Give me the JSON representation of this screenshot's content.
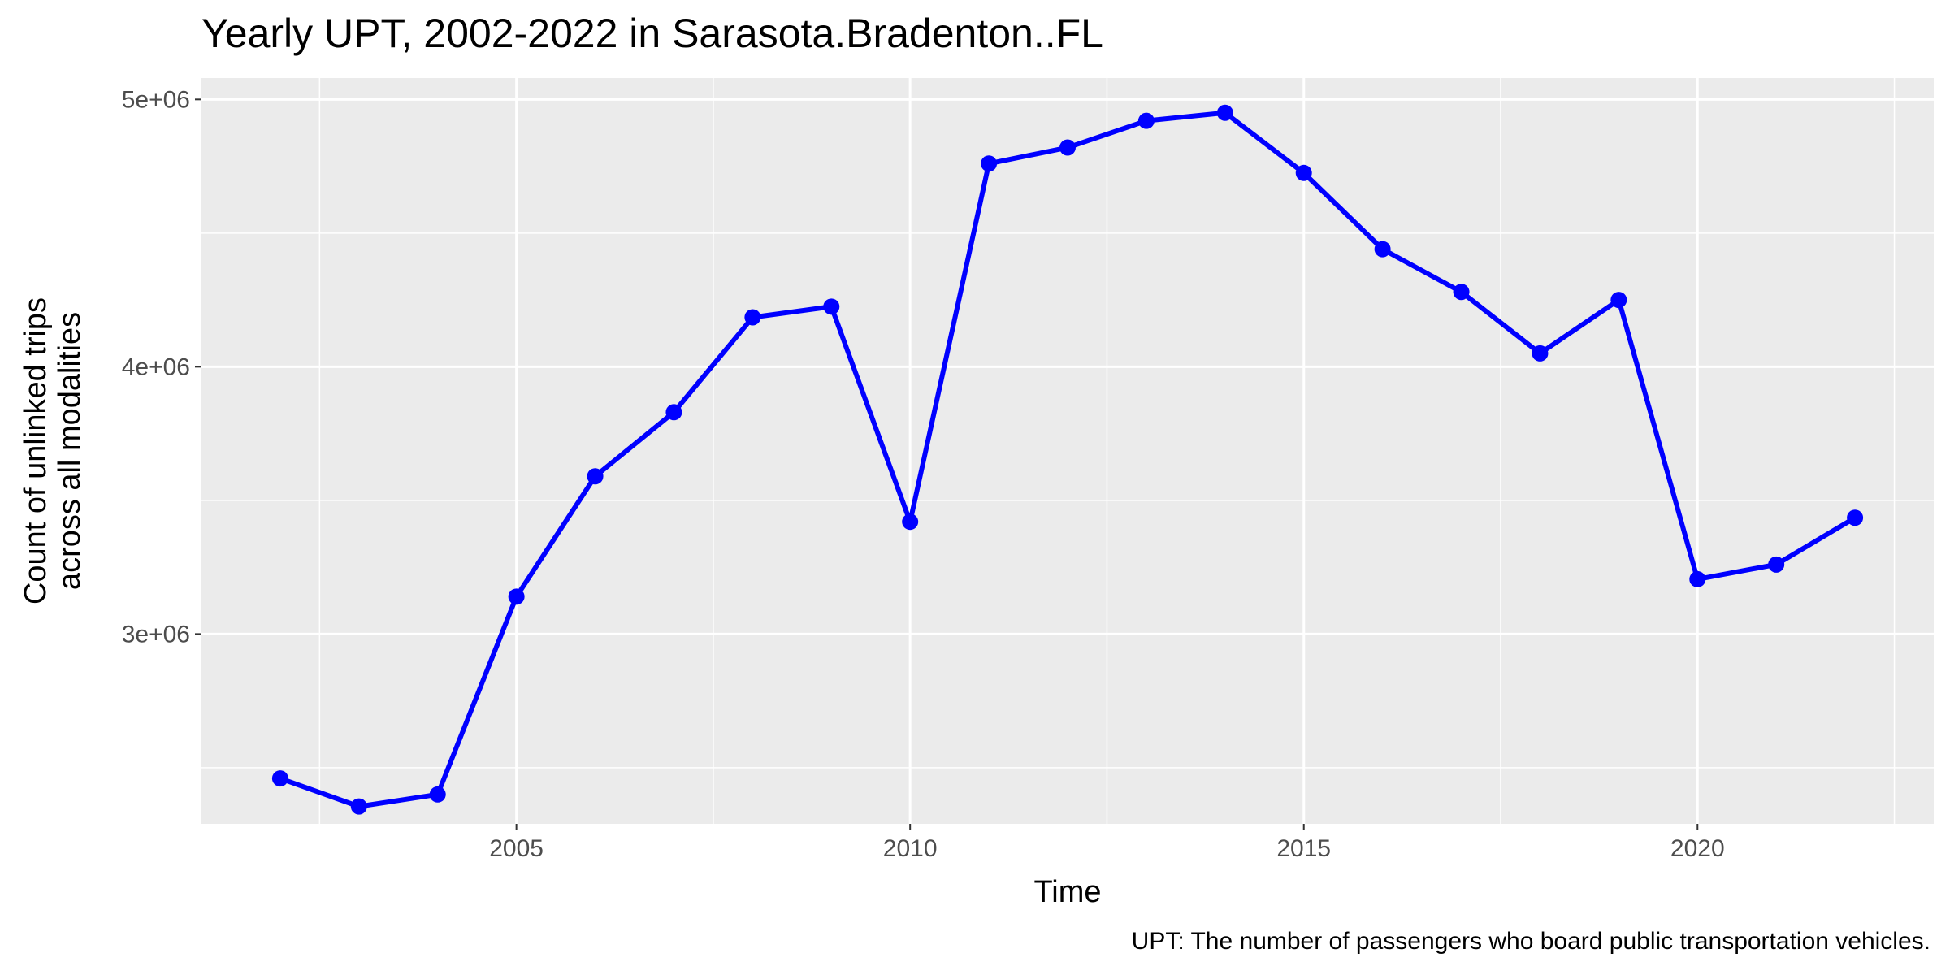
{
  "chart_data": {
    "type": "line",
    "title": "Yearly UPT, 2002-2022 in Sarasota.Bradenton..FL",
    "xlabel": "Time",
    "ylabel_lines": [
      "Count of unlinked trips",
      "across all modalities"
    ],
    "caption": "UPT: The number of passengers who board public transportation vehicles.",
    "x_ticks": [
      2005,
      2010,
      2015,
      2020
    ],
    "x_tick_labels": [
      "2005",
      "2010",
      "2015",
      "2020"
    ],
    "y_ticks": [
      3000000,
      4000000,
      5000000
    ],
    "y_tick_labels": [
      "3e+06",
      "4e+06",
      "5e+06"
    ],
    "xlim": [
      2001,
      2023
    ],
    "ylim": [
      2290000,
      5080000
    ],
    "grid": true,
    "colors": {
      "line": "#0000ff",
      "panel": "#ebebeb",
      "grid": "#ffffff"
    },
    "series": [
      {
        "x": [
          2002,
          2003,
          2004,
          2005,
          2006,
          2007,
          2008,
          2009,
          2010,
          2011,
          2012,
          2013,
          2014,
          2015,
          2016,
          2017,
          2018,
          2019,
          2020,
          2021,
          2022
        ],
        "values": [
          2460000,
          2355000,
          2400000,
          3140000,
          3590000,
          3830000,
          4185000,
          4225000,
          3420000,
          4760000,
          4820000,
          4920000,
          4950000,
          4725000,
          4440000,
          4280000,
          4050000,
          4250000,
          3205000,
          3260000,
          3435000
        ]
      }
    ]
  }
}
